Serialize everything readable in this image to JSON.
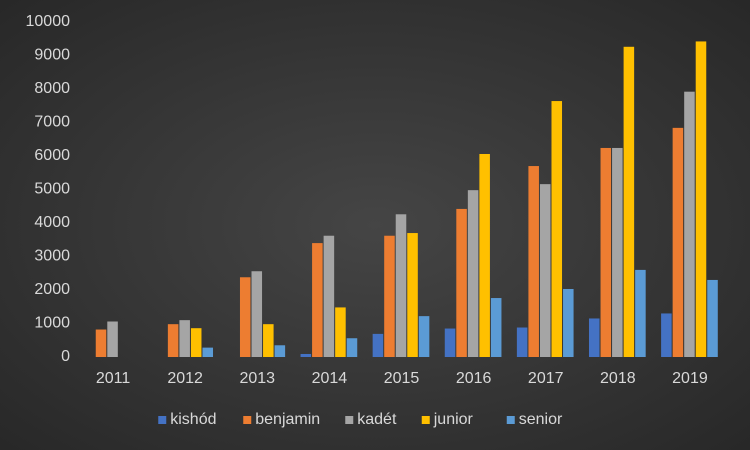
{
  "chart_data": {
    "type": "bar",
    "categories": [
      "2011",
      "2012",
      "2013",
      "2014",
      "2015",
      "2016",
      "2017",
      "2018",
      "2019"
    ],
    "series": [
      {
        "name": "kishód",
        "color": "#4472c4",
        "values": [
          0,
          0,
          0,
          90,
          690,
          850,
          880,
          1150,
          1300
        ]
      },
      {
        "name": "benjamin",
        "color": "#ed7d31",
        "values": [
          820,
          980,
          2380,
          3400,
          3620,
          4420,
          5700,
          6240,
          6840
        ]
      },
      {
        "name": "kadét",
        "color": "#a5a5a5",
        "values": [
          1060,
          1100,
          2560,
          3620,
          4260,
          4980,
          5160,
          6240,
          7920
        ]
      },
      {
        "name": "junior",
        "color": "#ffc000",
        "values": [
          0,
          860,
          980,
          1480,
          3700,
          6060,
          7640,
          9260,
          9420
        ]
      },
      {
        "name": "senior",
        "color": "#5b9bd5",
        "values": [
          0,
          280,
          350,
          560,
          1220,
          1760,
          2030,
          2600,
          2300
        ]
      }
    ],
    "ylim": [
      0,
      10000
    ],
    "yticks": [
      0,
      1000,
      2000,
      3000,
      4000,
      5000,
      6000,
      7000,
      8000,
      9000,
      10000
    ],
    "grid": false,
    "legend": "bottom"
  }
}
